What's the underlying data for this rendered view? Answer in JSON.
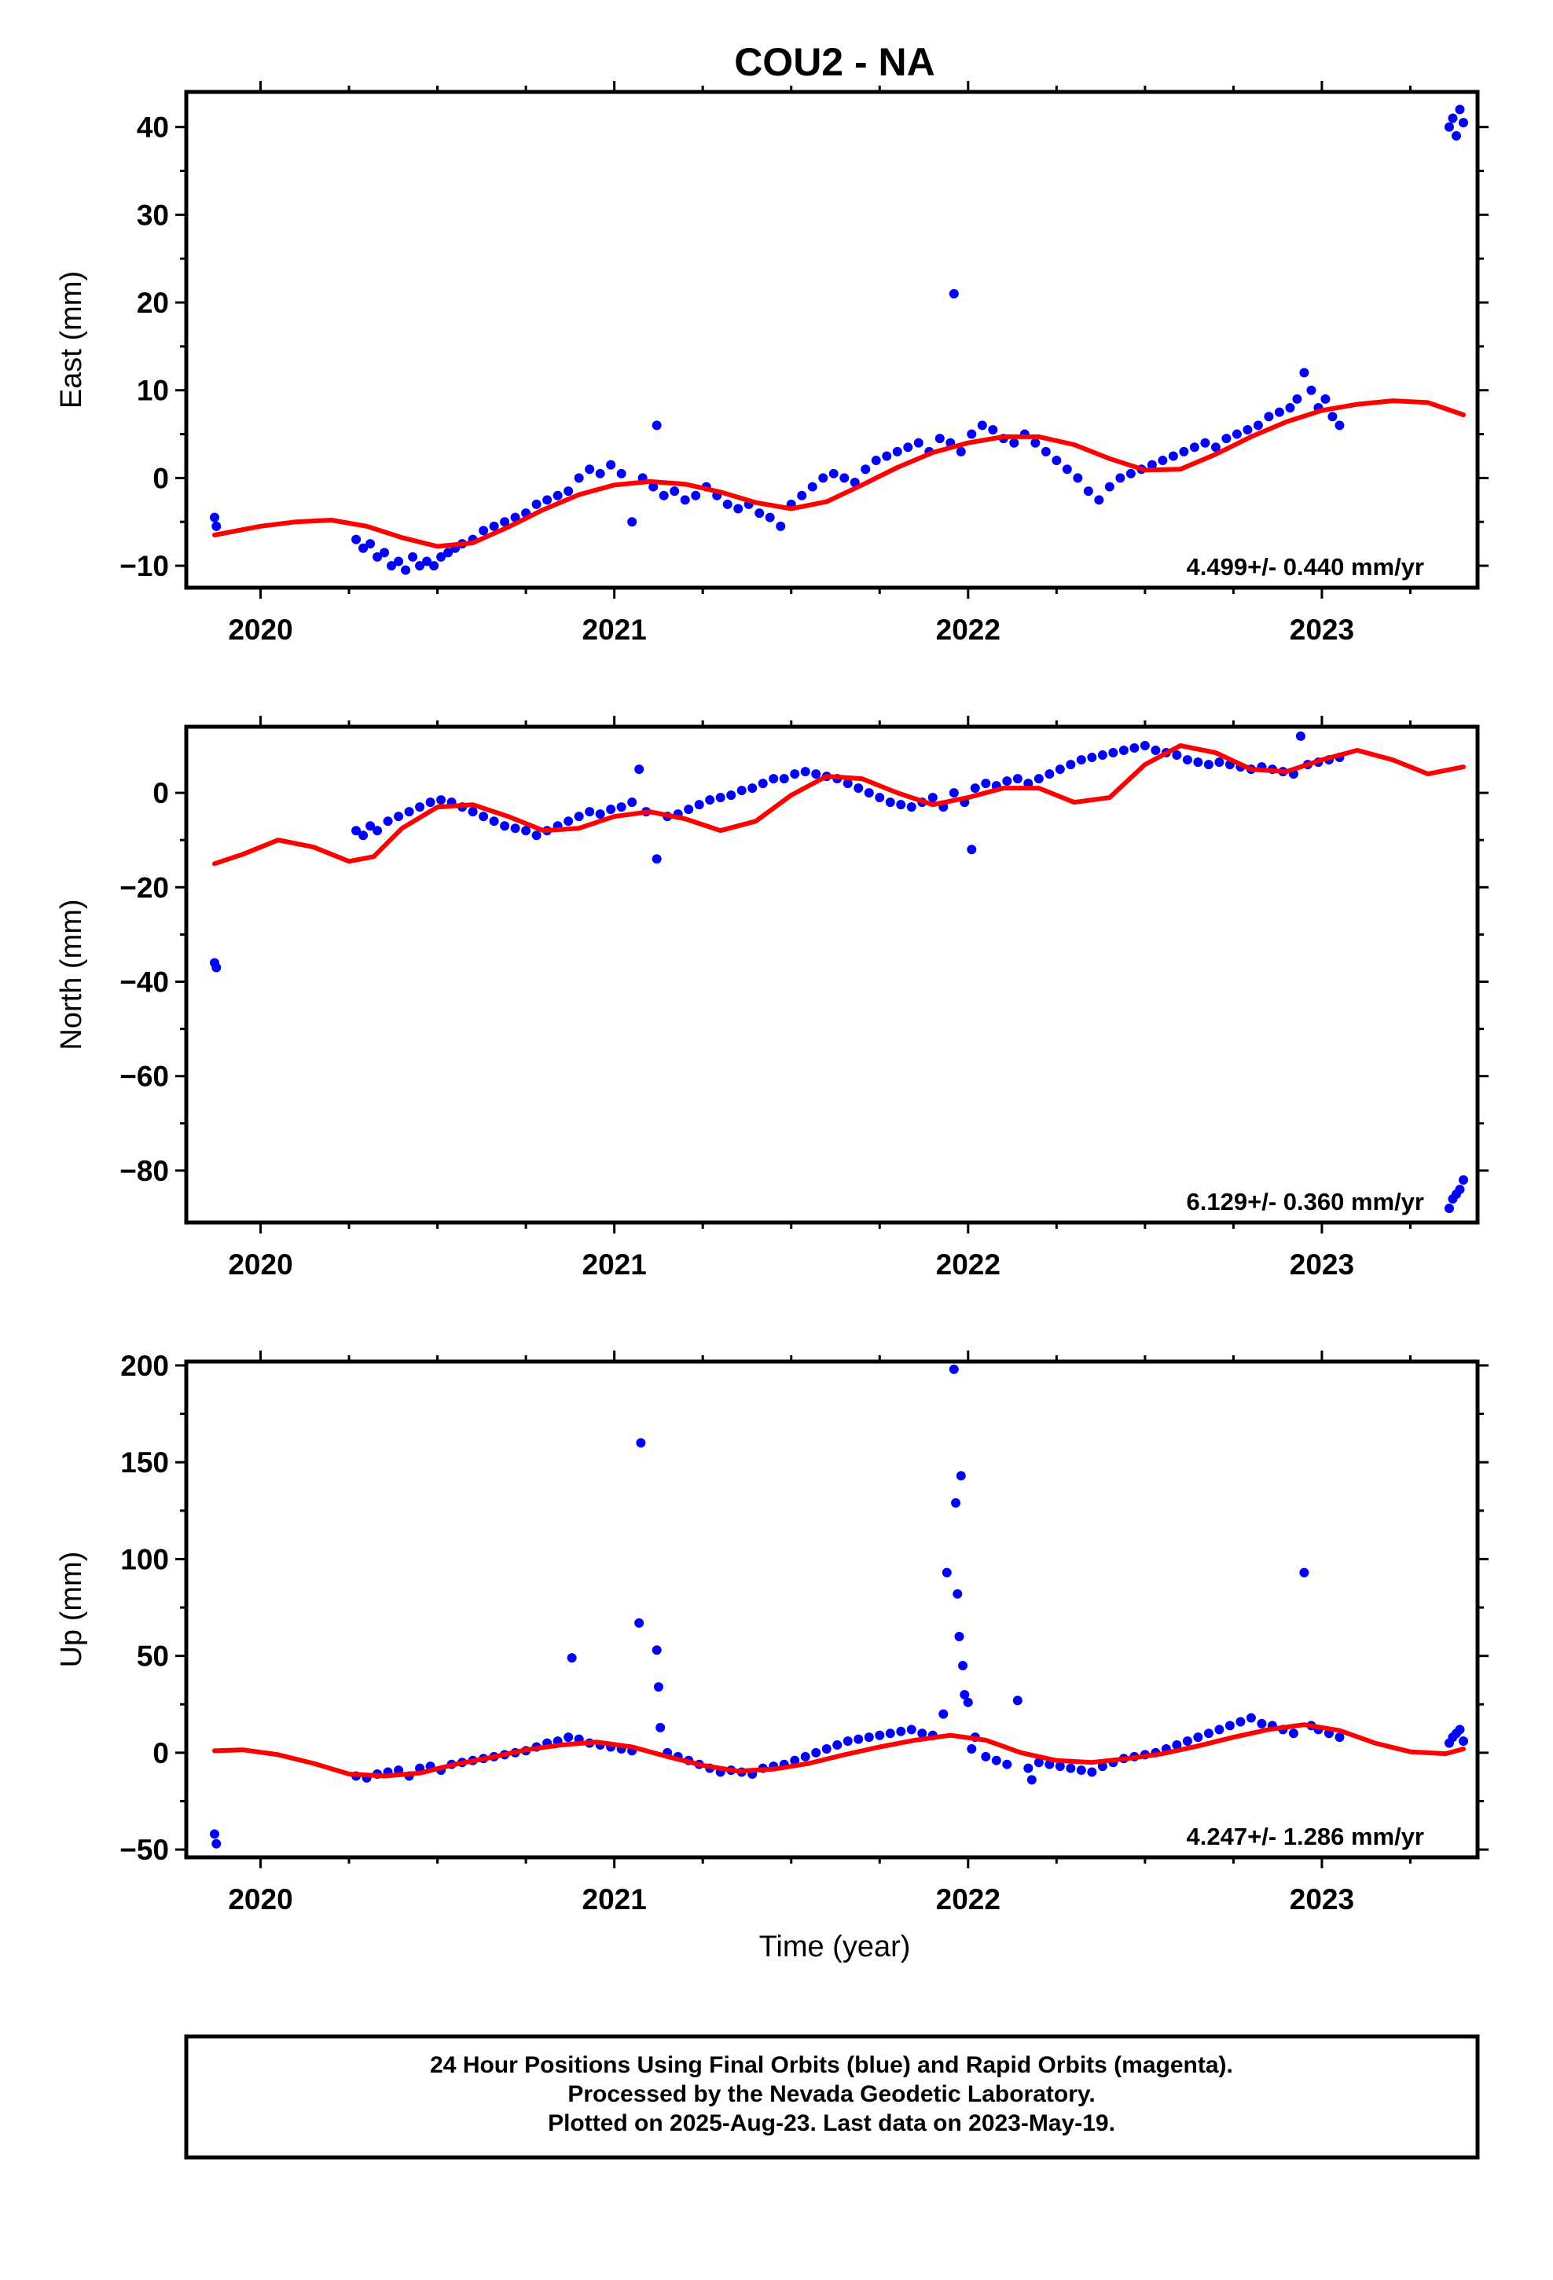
{
  "title": "COU2 - NA",
  "xlabel": "Time (year)",
  "footer": {
    "line1": "24 Hour Positions Using Final Orbits (blue) and Rapid Orbits (magenta).",
    "line2": "Processed by the Nevada Geodetic Laboratory.",
    "line3": "Plotted on 2025-Aug-23. Last data on 2023-May-19."
  },
  "colors": {
    "data": "#0000ff",
    "model": "#ff0000",
    "frame": "#000000"
  },
  "chart_data": [
    {
      "type": "scatter",
      "component": "east",
      "ylabel": "East (mm)",
      "rate_label": "4.499+/- 0.440 mm/yr",
      "xlim": [
        2019.79,
        2023.44
      ],
      "ylim": [
        -12.5,
        44
      ],
      "yticks": [
        -10,
        0,
        10,
        20,
        30,
        40
      ],
      "xticks": [
        2020,
        2021,
        2022,
        2023
      ],
      "grid": false,
      "series": [
        {
          "kind": "points",
          "x": [
            2019.87,
            2019.875,
            2020.27,
            2020.29,
            2020.31,
            2020.33,
            2020.35,
            2020.37,
            2020.39,
            2020.41,
            2020.43,
            2020.45,
            2020.47,
            2020.49,
            2020.51,
            2020.53,
            2020.55,
            2020.57,
            2020.6,
            2020.63,
            2020.66,
            2020.69,
            2020.72,
            2020.75,
            2020.78,
            2020.81,
            2020.84,
            2020.87,
            2020.9,
            2020.93,
            2020.96,
            2020.99,
            2021.02,
            2021.05,
            2021.08,
            2021.11,
            2021.12,
            2021.14,
            2021.17,
            2021.2,
            2021.23,
            2021.26,
            2021.29,
            2021.32,
            2021.35,
            2021.38,
            2021.41,
            2021.44,
            2021.47,
            2021.5,
            2021.53,
            2021.56,
            2021.59,
            2021.62,
            2021.65,
            2021.68,
            2021.71,
            2021.74,
            2021.77,
            2021.8,
            2021.83,
            2021.86,
            2021.89,
            2021.92,
            2021.95,
            2021.96,
            2021.98,
            2022.01,
            2022.04,
            2022.07,
            2022.1,
            2022.13,
            2022.16,
            2022.19,
            2022.22,
            2022.25,
            2022.28,
            2022.31,
            2022.34,
            2022.37,
            2022.4,
            2022.43,
            2022.46,
            2022.49,
            2022.52,
            2022.55,
            2022.58,
            2022.61,
            2022.64,
            2022.67,
            2022.7,
            2022.73,
            2022.76,
            2022.79,
            2022.82,
            2022.85,
            2022.88,
            2022.91,
            2022.93,
            2022.95,
            2022.97,
            2022.99,
            2023.01,
            2023.03,
            2023.05,
            2023.36,
            2023.37,
            2023.38,
            2023.39,
            2023.4
          ],
          "y": [
            -4.5,
            -5.5,
            -7,
            -8,
            -7.5,
            -9,
            -8.5,
            -10,
            -9.5,
            -10.5,
            -9,
            -10,
            -9.5,
            -10,
            -9,
            -8.5,
            -8,
            -7.5,
            -7,
            -6,
            -5.5,
            -5,
            -4.5,
            -4,
            -3,
            -2.5,
            -2,
            -1.5,
            0,
            1,
            0.5,
            1.5,
            0.5,
            -5,
            0,
            -1,
            6,
            -2,
            -1.5,
            -2.5,
            -2,
            -1,
            -2,
            -3,
            -3.5,
            -3,
            -4,
            -4.5,
            -5.5,
            -3,
            -2,
            -1,
            0,
            0.5,
            0,
            -0.5,
            1,
            2,
            2.5,
            3,
            3.5,
            4,
            3,
            4.5,
            4,
            21,
            3,
            5,
            6,
            5.5,
            4.5,
            4,
            5,
            4,
            3,
            2,
            1,
            0,
            -1.5,
            -2.5,
            -1,
            0,
            0.5,
            1,
            1.5,
            2,
            2.5,
            3,
            3.5,
            4,
            3.5,
            4.5,
            5,
            5.5,
            6,
            7,
            7.5,
            8,
            9,
            12,
            10,
            8,
            9,
            7,
            6,
            40,
            41,
            39,
            42,
            40.5
          ]
        },
        {
          "kind": "model",
          "x": [
            2019.87,
            2020.0,
            2020.1,
            2020.2,
            2020.3,
            2020.4,
            2020.5,
            2020.6,
            2020.7,
            2020.8,
            2020.9,
            2021.0,
            2021.1,
            2021.2,
            2021.3,
            2021.4,
            2021.5,
            2021.6,
            2021.7,
            2021.8,
            2021.9,
            2022.0,
            2022.1,
            2022.2,
            2022.3,
            2022.4,
            2022.5,
            2022.6,
            2022.7,
            2022.8,
            2022.9,
            2023.0,
            2023.1,
            2023.2,
            2023.3,
            2023.4
          ],
          "y": [
            -6.5,
            -5.5,
            -5.0,
            -4.8,
            -5.5,
            -6.8,
            -7.8,
            -7.4,
            -5.6,
            -3.6,
            -1.9,
            -0.8,
            -0.4,
            -0.7,
            -1.6,
            -2.8,
            -3.5,
            -2.7,
            -0.8,
            1.2,
            2.9,
            4.0,
            4.7,
            4.7,
            3.8,
            2.2,
            0.9,
            1.0,
            2.7,
            4.7,
            6.4,
            7.7,
            8.4,
            8.8,
            8.6,
            7.2
          ]
        }
      ]
    },
    {
      "type": "scatter",
      "component": "north",
      "ylabel": "North (mm)",
      "rate_label": "6.129+/- 0.360 mm/yr",
      "xlim": [
        2019.79,
        2023.44
      ],
      "ylim": [
        -91,
        14
      ],
      "yticks": [
        -80,
        -60,
        -40,
        -20,
        0
      ],
      "xticks": [
        2020,
        2021,
        2022,
        2023
      ],
      "grid": false,
      "series": [
        {
          "kind": "points",
          "x": [
            2019.87,
            2019.875,
            2020.27,
            2020.29,
            2020.31,
            2020.33,
            2020.36,
            2020.39,
            2020.42,
            2020.45,
            2020.48,
            2020.51,
            2020.54,
            2020.57,
            2020.6,
            2020.63,
            2020.66,
            2020.69,
            2020.72,
            2020.75,
            2020.78,
            2020.81,
            2020.84,
            2020.87,
            2020.9,
            2020.93,
            2020.96,
            2020.99,
            2021.02,
            2021.05,
            2021.07,
            2021.09,
            2021.12,
            2021.15,
            2021.18,
            2021.21,
            2021.24,
            2021.27,
            2021.3,
            2021.33,
            2021.36,
            2021.39,
            2021.42,
            2021.45,
            2021.48,
            2021.51,
            2021.54,
            2021.57,
            2021.6,
            2021.63,
            2021.66,
            2021.69,
            2021.72,
            2021.75,
            2021.78,
            2021.81,
            2021.84,
            2021.87,
            2021.9,
            2021.93,
            2021.96,
            2021.99,
            2022.01,
            2022.02,
            2022.05,
            2022.08,
            2022.11,
            2022.14,
            2022.17,
            2022.2,
            2022.23,
            2022.26,
            2022.29,
            2022.32,
            2022.35,
            2022.38,
            2022.41,
            2022.44,
            2022.47,
            2022.5,
            2022.53,
            2022.56,
            2022.59,
            2022.62,
            2022.65,
            2022.68,
            2022.71,
            2022.74,
            2022.77,
            2022.8,
            2022.83,
            2022.86,
            2022.89,
            2022.92,
            2022.94,
            2022.96,
            2022.99,
            2023.02,
            2023.05,
            2023.36,
            2023.37,
            2023.38,
            2023.39,
            2023.4
          ],
          "y": [
            -36,
            -37,
            -8,
            -9,
            -7,
            -8,
            -6,
            -5,
            -4,
            -3,
            -2,
            -1.5,
            -2,
            -3,
            -4,
            -5,
            -6,
            -7,
            -7.5,
            -8,
            -9,
            -8,
            -7,
            -6,
            -5,
            -4,
            -4.5,
            -3.5,
            -3,
            -2,
            5,
            -4,
            -14,
            -5,
            -4.5,
            -3.5,
            -2.5,
            -1.5,
            -1,
            -0.5,
            0.5,
            1,
            2,
            3,
            3,
            4,
            4.5,
            4,
            3.5,
            3,
            2,
            1,
            0,
            -1,
            -2,
            -2.5,
            -3,
            -2,
            -1,
            -3,
            0,
            -2,
            -12,
            1,
            2,
            1.5,
            2.5,
            3,
            2,
            3,
            4,
            5,
            6,
            7,
            7.5,
            8,
            8.5,
            9,
            9.5,
            10,
            9,
            8.5,
            8,
            7,
            6.5,
            6,
            6.5,
            6,
            5.5,
            5,
            5.5,
            5,
            4.5,
            4,
            12,
            6,
            6.5,
            7,
            7.5,
            -88,
            -86,
            -85,
            -84,
            -82
          ]
        },
        {
          "kind": "model",
          "x": [
            2019.87,
            2019.95,
            2020.05,
            2020.15,
            2020.25,
            2020.32,
            2020.4,
            2020.5,
            2020.6,
            2020.7,
            2020.8,
            2020.9,
            2021.0,
            2021.1,
            2021.2,
            2021.3,
            2021.4,
            2021.5,
            2021.6,
            2021.7,
            2021.8,
            2021.9,
            2022.0,
            2022.1,
            2022.2,
            2022.3,
            2022.4,
            2022.5,
            2022.6,
            2022.7,
            2022.8,
            2022.9,
            2023.0,
            2023.1,
            2023.2,
            2023.3,
            2023.4
          ],
          "y": [
            -15.0,
            -13.0,
            -10.0,
            -11.5,
            -14.5,
            -13.5,
            -7.5,
            -3.0,
            -2.5,
            -5.0,
            -8.0,
            -7.5,
            -5.0,
            -4.0,
            -5.5,
            -8.0,
            -6.0,
            -0.5,
            3.5,
            3.0,
            0.0,
            -2.5,
            -1.0,
            1.0,
            1.0,
            -2.0,
            -1.0,
            6.0,
            10.0,
            8.5,
            5.0,
            4.5,
            7.0,
            9.0,
            7.0,
            4.0,
            5.5
          ]
        }
      ]
    },
    {
      "type": "scatter",
      "component": "up",
      "ylabel": "Up (mm)",
      "rate_label": "4.247+/- 1.286 mm/yr",
      "xlim": [
        2019.79,
        2023.44
      ],
      "ylim": [
        -54,
        202
      ],
      "yticks": [
        -50,
        0,
        50,
        100,
        150,
        200
      ],
      "xticks": [
        2020,
        2021,
        2022,
        2023
      ],
      "grid": false,
      "series": [
        {
          "kind": "points",
          "x": [
            2019.87,
            2019.875,
            2020.27,
            2020.3,
            2020.33,
            2020.36,
            2020.39,
            2020.42,
            2020.45,
            2020.48,
            2020.51,
            2020.54,
            2020.57,
            2020.6,
            2020.63,
            2020.66,
            2020.69,
            2020.72,
            2020.75,
            2020.78,
            2020.81,
            2020.84,
            2020.87,
            2020.88,
            2020.9,
            2020.93,
            2020.96,
            2020.99,
            2021.02,
            2021.05,
            2021.07,
            2021.075,
            2021.12,
            2021.125,
            2021.13,
            2021.15,
            2021.18,
            2021.21,
            2021.24,
            2021.27,
            2021.3,
            2021.33,
            2021.36,
            2021.39,
            2021.42,
            2021.45,
            2021.48,
            2021.51,
            2021.54,
            2021.57,
            2021.6,
            2021.63,
            2021.66,
            2021.69,
            2021.72,
            2021.75,
            2021.78,
            2021.81,
            2021.84,
            2021.87,
            2021.9,
            2021.93,
            2021.94,
            2021.96,
            2021.965,
            2021.97,
            2021.975,
            2021.98,
            2021.985,
            2021.99,
            2022.0,
            2022.02,
            2022.01,
            2022.05,
            2022.08,
            2022.11,
            2022.14,
            2022.17,
            2022.18,
            2022.2,
            2022.23,
            2022.26,
            2022.29,
            2022.32,
            2022.35,
            2022.38,
            2022.41,
            2022.44,
            2022.47,
            2022.5,
            2022.53,
            2022.56,
            2022.59,
            2022.62,
            2022.65,
            2022.68,
            2022.71,
            2022.74,
            2022.77,
            2022.8,
            2022.83,
            2022.86,
            2022.89,
            2022.92,
            2022.95,
            2022.97,
            2022.99,
            2023.02,
            2023.05,
            2023.36,
            2023.37,
            2023.38,
            2023.39,
            2023.4
          ],
          "y": [
            -42,
            -47,
            -12,
            -13,
            -11,
            -10,
            -9,
            -12,
            -8,
            -7,
            -9,
            -6,
            -5,
            -4,
            -3,
            -2,
            -1,
            0,
            1,
            3,
            5,
            6,
            8,
            49,
            7,
            5,
            4,
            3,
            2,
            1,
            67,
            160,
            53,
            34,
            13,
            0,
            -2,
            -4,
            -6,
            -8,
            -10,
            -9,
            -10,
            -11,
            -8,
            -7,
            -6,
            -4,
            -2,
            0,
            2,
            4,
            6,
            7,
            8,
            9,
            10,
            11,
            12,
            10,
            9,
            20,
            93,
            198,
            129,
            82,
            60,
            143,
            45,
            30,
            26,
            8,
            2,
            -2,
            -4,
            -6,
            27,
            -8,
            -14,
            -5,
            -6,
            -7,
            -8,
            -9,
            -10,
            -7,
            -5,
            -3,
            -2,
            -1,
            0,
            2,
            4,
            6,
            8,
            10,
            12,
            14,
            16,
            18,
            15,
            14,
            12,
            10,
            93,
            14,
            12,
            10,
            8,
            5,
            8,
            10,
            12,
            6
          ]
        },
        {
          "kind": "model",
          "x": [
            2019.87,
            2019.95,
            2020.05,
            2020.15,
            2020.25,
            2020.35,
            2020.45,
            2020.55,
            2020.65,
            2020.75,
            2020.85,
            2020.95,
            2021.05,
            2021.15,
            2021.25,
            2021.35,
            2021.45,
            2021.55,
            2021.65,
            2021.75,
            2021.85,
            2021.95,
            2022.05,
            2022.15,
            2022.25,
            2022.35,
            2022.45,
            2022.55,
            2022.65,
            2022.75,
            2022.85,
            2022.95,
            2023.05,
            2023.15,
            2023.25,
            2023.35,
            2023.4
          ],
          "y": [
            1.0,
            1.5,
            -1.0,
            -5.5,
            -11.0,
            -12.0,
            -10.5,
            -6.0,
            -2.5,
            1.5,
            4.0,
            5.5,
            3.0,
            -2.0,
            -6.5,
            -9.5,
            -8.5,
            -5.5,
            -1.0,
            3.0,
            6.5,
            9.0,
            6.5,
            0.0,
            -4.0,
            -5.0,
            -3.0,
            -0.5,
            3.5,
            8.0,
            12.0,
            14.5,
            11.5,
            5.0,
            0.5,
            -0.5,
            2.0
          ]
        }
      ]
    }
  ]
}
